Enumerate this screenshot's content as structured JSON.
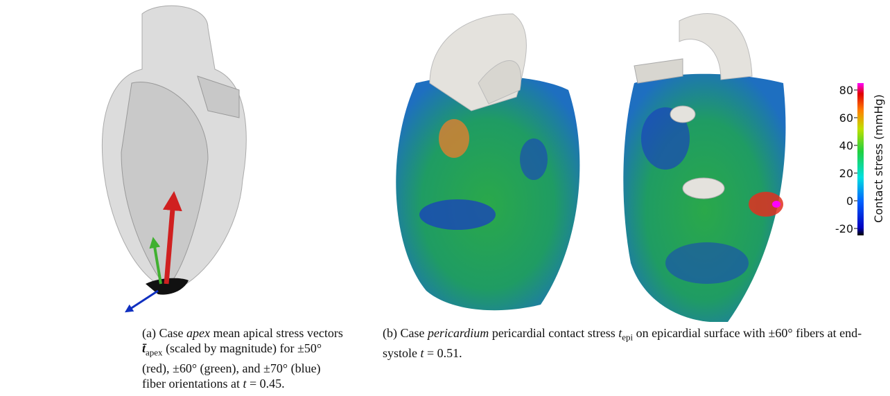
{
  "panels": [
    {
      "caption": [
        {
          "text": "(a) Case "
        },
        {
          "text": "apex",
          "italic": true
        },
        {
          "text": " mean apical stress vectors "
        },
        {
          "text": "t̄",
          "italic": true,
          "bold": true,
          "sub": "apex"
        },
        {
          "text": " (scaled by magnitude) for ±50° (red), ±60° (green), and ±70° (blue) fiber orientations at "
        },
        {
          "text": "t",
          "italic": true
        },
        {
          "text": " = 0.45."
        }
      ]
    },
    {
      "caption": [
        {
          "text": "(b) Case "
        },
        {
          "text": "pericardium",
          "italic": true
        },
        {
          "text": " pericardial contact stress "
        },
        {
          "text": "t",
          "italic": true,
          "sub": "epi"
        },
        {
          "text": " on epicardial surface with ±60° fibers at end-systole "
        },
        {
          "text": "t",
          "italic": true
        },
        {
          "text": " = 0.51."
        }
      ]
    }
  ],
  "colorbar": {
    "title": "Contact stress (mmHg)",
    "lim": [
      -25,
      85
    ],
    "ticks": [
      80,
      60,
      40,
      20,
      0,
      -20
    ]
  }
}
